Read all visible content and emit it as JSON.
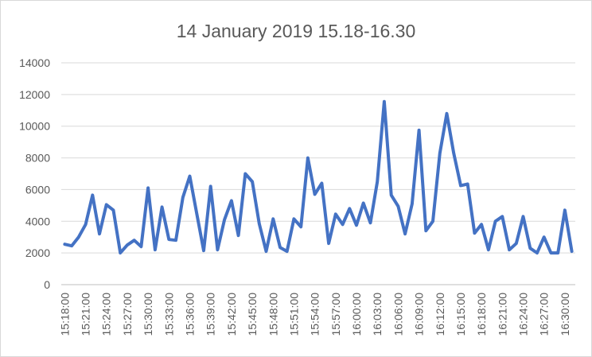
{
  "chart_data": {
    "type": "line",
    "title": "14 January 2019 15.18-16.30",
    "xlabel": "",
    "ylabel": "",
    "ylim": [
      0,
      14000
    ],
    "yticks": [
      0,
      2000,
      4000,
      6000,
      8000,
      10000,
      12000,
      14000
    ],
    "grid": "horizontal",
    "legend": "none",
    "x": [
      "15:18:00",
      "15:19:00",
      "15:20:00",
      "15:21:00",
      "15:22:00",
      "15:23:00",
      "15:24:00",
      "15:25:00",
      "15:26:00",
      "15:27:00",
      "15:28:00",
      "15:29:00",
      "15:30:00",
      "15:31:00",
      "15:32:00",
      "15:33:00",
      "15:34:00",
      "15:35:00",
      "15:36:00",
      "15:37:00",
      "15:38:00",
      "15:39:00",
      "15:40:00",
      "15:41:00",
      "15:42:00",
      "15:43:00",
      "15:44:00",
      "15:45:00",
      "15:46:00",
      "15:47:00",
      "15:48:00",
      "15:49:00",
      "15:50:00",
      "15:51:00",
      "15:52:00",
      "15:53:00",
      "15:54:00",
      "15:55:00",
      "15:56:00",
      "15:57:00",
      "15:58:00",
      "15:59:00",
      "16:00:00",
      "16:01:00",
      "16:02:00",
      "16:03:00",
      "16:04:00",
      "16:05:00",
      "16:06:00",
      "16:07:00",
      "16:08:00",
      "16:09:00",
      "16:10:00",
      "16:11:00",
      "16:12:00",
      "16:13:00",
      "16:14:00",
      "16:15:00",
      "16:16:00",
      "16:17:00",
      "16:18:00",
      "16:19:00",
      "16:20:00",
      "16:21:00",
      "16:22:00",
      "16:23:00",
      "16:24:00",
      "16:25:00",
      "16:26:00",
      "16:27:00",
      "16:28:00",
      "16:29:00",
      "16:30:00",
      "16:31:00"
    ],
    "tick_labels": [
      "15:18:00",
      "15:21:00",
      "15:24:00",
      "15:27:00",
      "15:30:00",
      "15:33:00",
      "15:36:00",
      "15:39:00",
      "15:42:00",
      "15:45:00",
      "15:48:00",
      "15:51:00",
      "15:54:00",
      "15:57:00",
      "16:00:00",
      "16:03:00",
      "16:06:00",
      "16:09:00",
      "16:12:00",
      "16:15:00",
      "16:18:00",
      "16:21:00",
      "16:24:00",
      "16:27:00",
      "16:30:00"
    ],
    "series": [
      {
        "color": "#4472c4",
        "values": [
          2550,
          2450,
          3000,
          3800,
          5650,
          3200,
          5050,
          4700,
          2000,
          2500,
          2800,
          2400,
          6100,
          2200,
          4900,
          2850,
          2800,
          5500,
          6850,
          4500,
          2150,
          6200,
          2200,
          4100,
          5300,
          3100,
          7000,
          6500,
          3850,
          2100,
          4150,
          2350,
          2100,
          4150,
          3650,
          8000,
          5700,
          6400,
          2600,
          4450,
          3800,
          4800,
          3750,
          5150,
          3900,
          6500,
          11550,
          5650,
          4950,
          3200,
          5100,
          9750,
          3400,
          4000,
          8300,
          10800,
          8300,
          6250,
          6350,
          3250,
          3800,
          2200,
          4000,
          4300,
          2200,
          2600,
          4300,
          2300,
          2000,
          3000,
          2000,
          2000,
          4700,
          2100
        ]
      }
    ]
  }
}
